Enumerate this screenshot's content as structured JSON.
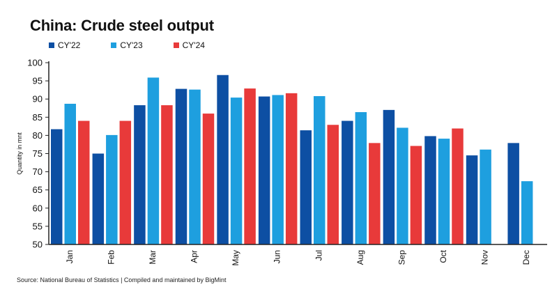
{
  "title": "China: Crude steel output",
  "source": "Source: National Bureau of Statistics | Compiled and maintained by BigMint",
  "chart_data": {
    "type": "bar",
    "categories": [
      "Jan",
      "Feb",
      "Mar",
      "Apr",
      "May",
      "Jun",
      "Jul",
      "Aug",
      "Sep",
      "Oct",
      "Nov",
      "Dec"
    ],
    "series": [
      {
        "name": "CY'22",
        "color": "#0d4fa3",
        "values": [
          81.7,
          75.0,
          88.3,
          92.8,
          96.6,
          90.7,
          81.4,
          84.0,
          87.0,
          79.8,
          74.5,
          77.9
        ]
      },
      {
        "name": "CY'23",
        "color": "#1e9fdf",
        "values": [
          88.7,
          80.1,
          95.9,
          92.6,
          90.4,
          91.1,
          90.8,
          86.4,
          82.1,
          79.1,
          76.1,
          67.4
        ]
      },
      {
        "name": "CY'24",
        "color": "#e83a3a",
        "values": [
          84.0,
          84.0,
          88.3,
          86.0,
          92.9,
          91.6,
          82.9,
          77.9,
          77.1,
          81.9,
          null,
          null
        ]
      }
    ],
    "ylabel": "Quantity in mnt",
    "xlabel": "",
    "ylim": [
      50,
      100
    ],
    "yticks": [
      50,
      55,
      60,
      65,
      70,
      75,
      80,
      85,
      90,
      95,
      100
    ],
    "grid": false,
    "legend": "top-left"
  }
}
